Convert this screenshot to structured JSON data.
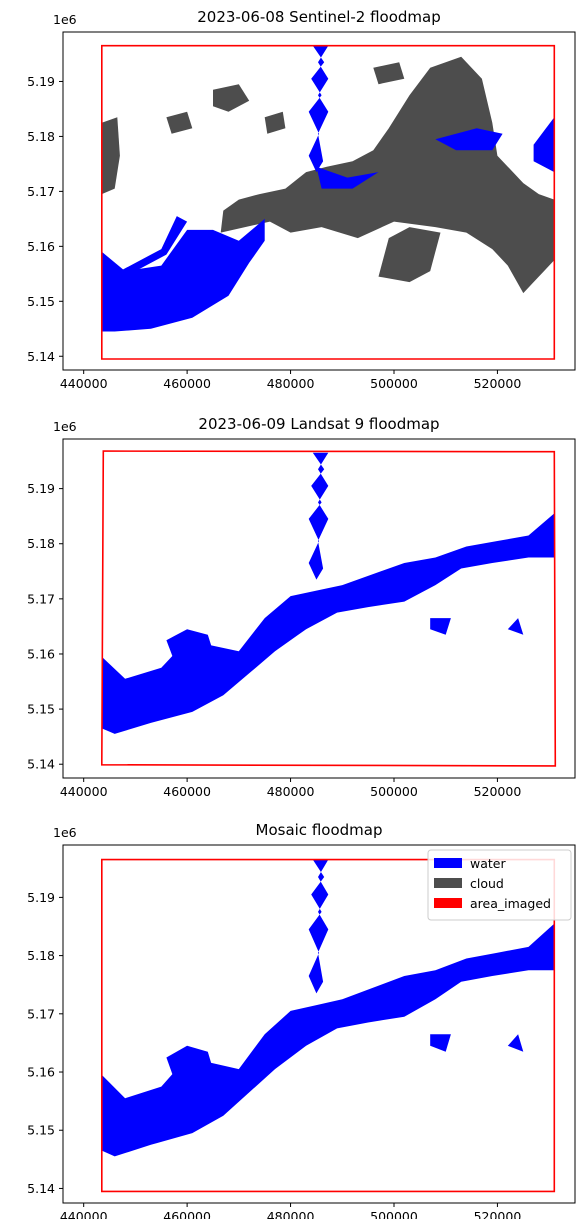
{
  "chart_data": [
    {
      "type": "map",
      "title": "2023-06-08 Sentinel-2 floodmap",
      "xlabel": "",
      "ylabel": "",
      "xlim": [
        436000,
        535000
      ],
      "ylim": [
        5.1375,
        5.199
      ],
      "xticks": [
        440000,
        460000,
        480000,
        500000,
        520000
      ],
      "yticks": [
        5.14,
        5.15,
        5.16,
        5.17,
        5.18,
        5.19
      ],
      "y_offset_label": "1e6",
      "area_imaged": [
        [
          443500,
          5.1965
        ],
        [
          531000,
          5.1965
        ],
        [
          531000,
          5.1395
        ],
        [
          443500,
          5.1395
        ]
      ],
      "water": [
        [
          [
            443500,
            5.159
          ],
          [
            448000,
            5.1555
          ],
          [
            455000,
            5.1565
          ],
          [
            460000,
            5.163
          ],
          [
            465000,
            5.163
          ],
          [
            470000,
            5.161
          ],
          [
            475000,
            5.165
          ],
          [
            475000,
            5.161
          ],
          [
            472000,
            5.157
          ],
          [
            468000,
            5.151
          ],
          [
            461000,
            5.147
          ],
          [
            453000,
            5.145
          ],
          [
            446000,
            5.1445
          ],
          [
            443500,
            5.1445
          ]
        ],
        [
          [
            443500,
            5.1585
          ],
          [
            447000,
            5.1555
          ],
          [
            455000,
            5.1595
          ],
          [
            458000,
            5.1655
          ],
          [
            460000,
            5.1645
          ],
          [
            456000,
            5.1585
          ],
          [
            448000,
            5.1545
          ],
          [
            443500,
            5.1555
          ]
        ],
        [
          [
            484300,
            5.1965
          ],
          [
            486500,
            5.1935
          ],
          [
            484000,
            5.1905
          ],
          [
            486000,
            5.1875
          ],
          [
            483500,
            5.1845
          ],
          [
            485500,
            5.1805
          ],
          [
            483500,
            5.1765
          ],
          [
            485000,
            5.1735
          ],
          [
            486300,
            5.1755
          ],
          [
            485300,
            5.1805
          ],
          [
            487300,
            5.1845
          ],
          [
            485300,
            5.1875
          ],
          [
            487300,
            5.1905
          ],
          [
            485300,
            5.1935
          ],
          [
            487300,
            5.1965
          ]
        ],
        [
          [
            527000,
            5.1785
          ],
          [
            531000,
            5.1835
          ],
          [
            531000,
            5.1735
          ],
          [
            527000,
            5.1755
          ]
        ],
        [
          [
            508000,
            5.1795
          ],
          [
            516000,
            5.1815
          ],
          [
            521000,
            5.1805
          ],
          [
            519000,
            5.1775
          ],
          [
            512000,
            5.1775
          ]
        ],
        [
          [
            485000,
            5.1745
          ],
          [
            491000,
            5.1725
          ],
          [
            497000,
            5.1735
          ],
          [
            492000,
            5.1705
          ],
          [
            486000,
            5.1705
          ]
        ]
      ],
      "cloud": [
        [
          [
            443500,
            5.1825
          ],
          [
            446500,
            5.1835
          ],
          [
            447000,
            5.1765
          ],
          [
            446000,
            5.1705
          ],
          [
            443500,
            5.1695
          ]
        ],
        [
          [
            466500,
            5.1625
          ],
          [
            476000,
            5.1645
          ],
          [
            480000,
            5.1625
          ],
          [
            486000,
            5.1635
          ],
          [
            493000,
            5.1615
          ],
          [
            500000,
            5.1645
          ],
          [
            508000,
            5.1635
          ],
          [
            514000,
            5.1625
          ],
          [
            519000,
            5.1595
          ],
          [
            522000,
            5.1565
          ],
          [
            525000,
            5.1515
          ],
          [
            527000,
            5.1535
          ],
          [
            529000,
            5.1555
          ],
          [
            531000,
            5.1575
          ],
          [
            531000,
            5.1685
          ],
          [
            528000,
            5.1695
          ],
          [
            525000,
            5.1715
          ],
          [
            522000,
            5.1745
          ],
          [
            520000,
            5.1765
          ],
          [
            519000,
            5.1825
          ],
          [
            517000,
            5.1905
          ],
          [
            513000,
            5.1945
          ],
          [
            507000,
            5.1925
          ],
          [
            503000,
            5.1875
          ],
          [
            499000,
            5.1815
          ],
          [
            496000,
            5.1775
          ],
          [
            492000,
            5.1755
          ],
          [
            487000,
            5.1745
          ],
          [
            483000,
            5.1735
          ],
          [
            479000,
            5.1705
          ],
          [
            474000,
            5.1695
          ],
          [
            470000,
            5.1685
          ],
          [
            467000,
            5.1665
          ]
        ],
        [
          [
            497000,
            5.1545
          ],
          [
            503000,
            5.1535
          ],
          [
            507000,
            5.1555
          ],
          [
            509000,
            5.1625
          ],
          [
            503000,
            5.1635
          ],
          [
            499000,
            5.1615
          ]
        ],
        [
          [
            465000,
            5.1885
          ],
          [
            470000,
            5.1895
          ],
          [
            472000,
            5.1865
          ],
          [
            468000,
            5.1845
          ],
          [
            465000,
            5.1855
          ]
        ],
        [
          [
            456000,
            5.1835
          ],
          [
            460000,
            5.1845
          ],
          [
            461000,
            5.1815
          ],
          [
            457000,
            5.1805
          ]
        ],
        [
          [
            496000,
            5.1925
          ],
          [
            501000,
            5.1935
          ],
          [
            502000,
            5.1905
          ],
          [
            497000,
            5.1895
          ]
        ],
        [
          [
            475000,
            5.1835
          ],
          [
            478500,
            5.1845
          ],
          [
            479000,
            5.1815
          ],
          [
            475500,
            5.1805
          ]
        ]
      ]
    },
    {
      "type": "map",
      "title": "2023-06-09 Landsat 9 floodmap",
      "xlabel": "",
      "ylabel": "",
      "xlim": [
        436000,
        535000
      ],
      "ylim": [
        5.1375,
        5.199
      ],
      "xticks": [
        440000,
        460000,
        480000,
        500000,
        520000
      ],
      "yticks": [
        5.14,
        5.15,
        5.16,
        5.17,
        5.18,
        5.19
      ],
      "y_offset_label": "1e6",
      "area_imaged": [
        [
          443800,
          5.1968
        ],
        [
          531000,
          5.1967
        ],
        [
          531200,
          5.1397
        ],
        [
          443500,
          5.1399
        ]
      ],
      "water": [
        [
          [
            443500,
            5.1595
          ],
          [
            448000,
            5.1555
          ],
          [
            455000,
            5.1575
          ],
          [
            460000,
            5.1625
          ],
          [
            465000,
            5.1615
          ],
          [
            470000,
            5.1605
          ],
          [
            475000,
            5.1665
          ],
          [
            480000,
            5.1705
          ],
          [
            485000,
            5.1715
          ],
          [
            490000,
            5.1725
          ],
          [
            496000,
            5.1745
          ],
          [
            502000,
            5.1765
          ],
          [
            508000,
            5.1775
          ],
          [
            514000,
            5.1795
          ],
          [
            520000,
            5.1805
          ],
          [
            526000,
            5.1815
          ],
          [
            531000,
            5.1855
          ],
          [
            531000,
            5.1775
          ],
          [
            526000,
            5.1775
          ],
          [
            519000,
            5.1765
          ],
          [
            513000,
            5.1755
          ],
          [
            508000,
            5.1725
          ],
          [
            502000,
            5.1695
          ],
          [
            495000,
            5.1685
          ],
          [
            489000,
            5.1675
          ],
          [
            483000,
            5.1645
          ],
          [
            477000,
            5.1605
          ],
          [
            472000,
            5.1565
          ],
          [
            467000,
            5.1525
          ],
          [
            461000,
            5.1495
          ],
          [
            453000,
            5.1475
          ],
          [
            446000,
            5.1455
          ],
          [
            443500,
            5.1465
          ]
        ],
        [
          [
            484300,
            5.1965
          ],
          [
            486500,
            5.1935
          ],
          [
            484000,
            5.1905
          ],
          [
            486000,
            5.1875
          ],
          [
            483500,
            5.1845
          ],
          [
            485500,
            5.1805
          ],
          [
            483500,
            5.1765
          ],
          [
            485000,
            5.1735
          ],
          [
            486300,
            5.1755
          ],
          [
            485300,
            5.1805
          ],
          [
            487300,
            5.1845
          ],
          [
            485300,
            5.1875
          ],
          [
            487300,
            5.1905
          ],
          [
            485300,
            5.1935
          ],
          [
            487300,
            5.1965
          ]
        ],
        [
          [
            456000,
            5.1625
          ],
          [
            460000,
            5.1645
          ],
          [
            464000,
            5.1635
          ],
          [
            465000,
            5.1605
          ],
          [
            462000,
            5.1575
          ],
          [
            458000,
            5.1575
          ]
        ],
        [
          [
            507000,
            5.1665
          ],
          [
            511000,
            5.1665
          ],
          [
            510000,
            5.1635
          ],
          [
            507000,
            5.1645
          ]
        ],
        [
          [
            522000,
            5.1645
          ],
          [
            524000,
            5.1665
          ],
          [
            525000,
            5.1635
          ]
        ]
      ],
      "cloud": []
    },
    {
      "type": "map",
      "title": "Mosaic floodmap",
      "xlabel": "",
      "ylabel": "",
      "xlim": [
        436000,
        535000
      ],
      "ylim": [
        5.1375,
        5.199
      ],
      "xticks": [
        440000,
        460000,
        480000,
        500000,
        520000
      ],
      "yticks": [
        5.14,
        5.15,
        5.16,
        5.17,
        5.18,
        5.19
      ],
      "y_offset_label": "1e6",
      "legend": [
        {
          "label": "water",
          "color": "#0000ff"
        },
        {
          "label": "cloud",
          "color": "#4d4d4d"
        },
        {
          "label": "area_imaged",
          "color": "#ff0000"
        }
      ],
      "legend_position": "top-right",
      "area_imaged": [
        [
          443500,
          5.1965
        ],
        [
          531000,
          5.1965
        ],
        [
          531000,
          5.1395
        ],
        [
          443500,
          5.1395
        ]
      ],
      "water": [
        [
          [
            443500,
            5.1595
          ],
          [
            448000,
            5.1555
          ],
          [
            455000,
            5.1575
          ],
          [
            460000,
            5.1625
          ],
          [
            465000,
            5.1615
          ],
          [
            470000,
            5.1605
          ],
          [
            475000,
            5.1665
          ],
          [
            480000,
            5.1705
          ],
          [
            485000,
            5.1715
          ],
          [
            490000,
            5.1725
          ],
          [
            496000,
            5.1745
          ],
          [
            502000,
            5.1765
          ],
          [
            508000,
            5.1775
          ],
          [
            514000,
            5.1795
          ],
          [
            520000,
            5.1805
          ],
          [
            526000,
            5.1815
          ],
          [
            531000,
            5.1855
          ],
          [
            531000,
            5.1775
          ],
          [
            526000,
            5.1775
          ],
          [
            519000,
            5.1765
          ],
          [
            513000,
            5.1755
          ],
          [
            508000,
            5.1725
          ],
          [
            502000,
            5.1695
          ],
          [
            495000,
            5.1685
          ],
          [
            489000,
            5.1675
          ],
          [
            483000,
            5.1645
          ],
          [
            477000,
            5.1605
          ],
          [
            472000,
            5.1565
          ],
          [
            467000,
            5.1525
          ],
          [
            461000,
            5.1495
          ],
          [
            453000,
            5.1475
          ],
          [
            446000,
            5.1455
          ],
          [
            443500,
            5.1465
          ]
        ],
        [
          [
            484300,
            5.1965
          ],
          [
            486500,
            5.1935
          ],
          [
            484000,
            5.1905
          ],
          [
            486000,
            5.1875
          ],
          [
            483500,
            5.1845
          ],
          [
            485500,
            5.1805
          ],
          [
            483500,
            5.1765
          ],
          [
            485000,
            5.1735
          ],
          [
            486300,
            5.1755
          ],
          [
            485300,
            5.1805
          ],
          [
            487300,
            5.1845
          ],
          [
            485300,
            5.1875
          ],
          [
            487300,
            5.1905
          ],
          [
            485300,
            5.1935
          ],
          [
            487300,
            5.1965
          ]
        ],
        [
          [
            456000,
            5.1625
          ],
          [
            460000,
            5.1645
          ],
          [
            464000,
            5.1635
          ],
          [
            465000,
            5.1605
          ],
          [
            462000,
            5.1575
          ],
          [
            458000,
            5.1575
          ]
        ],
        [
          [
            507000,
            5.1665
          ],
          [
            511000,
            5.1665
          ],
          [
            510000,
            5.1635
          ],
          [
            507000,
            5.1645
          ]
        ],
        [
          [
            522000,
            5.1645
          ],
          [
            524000,
            5.1665
          ],
          [
            525000,
            5.1635
          ]
        ]
      ],
      "cloud": []
    }
  ],
  "colors": {
    "water": "#0000ff",
    "cloud": "#4d4d4d",
    "area_imaged": "#ff0000",
    "axes": "#000000"
  }
}
